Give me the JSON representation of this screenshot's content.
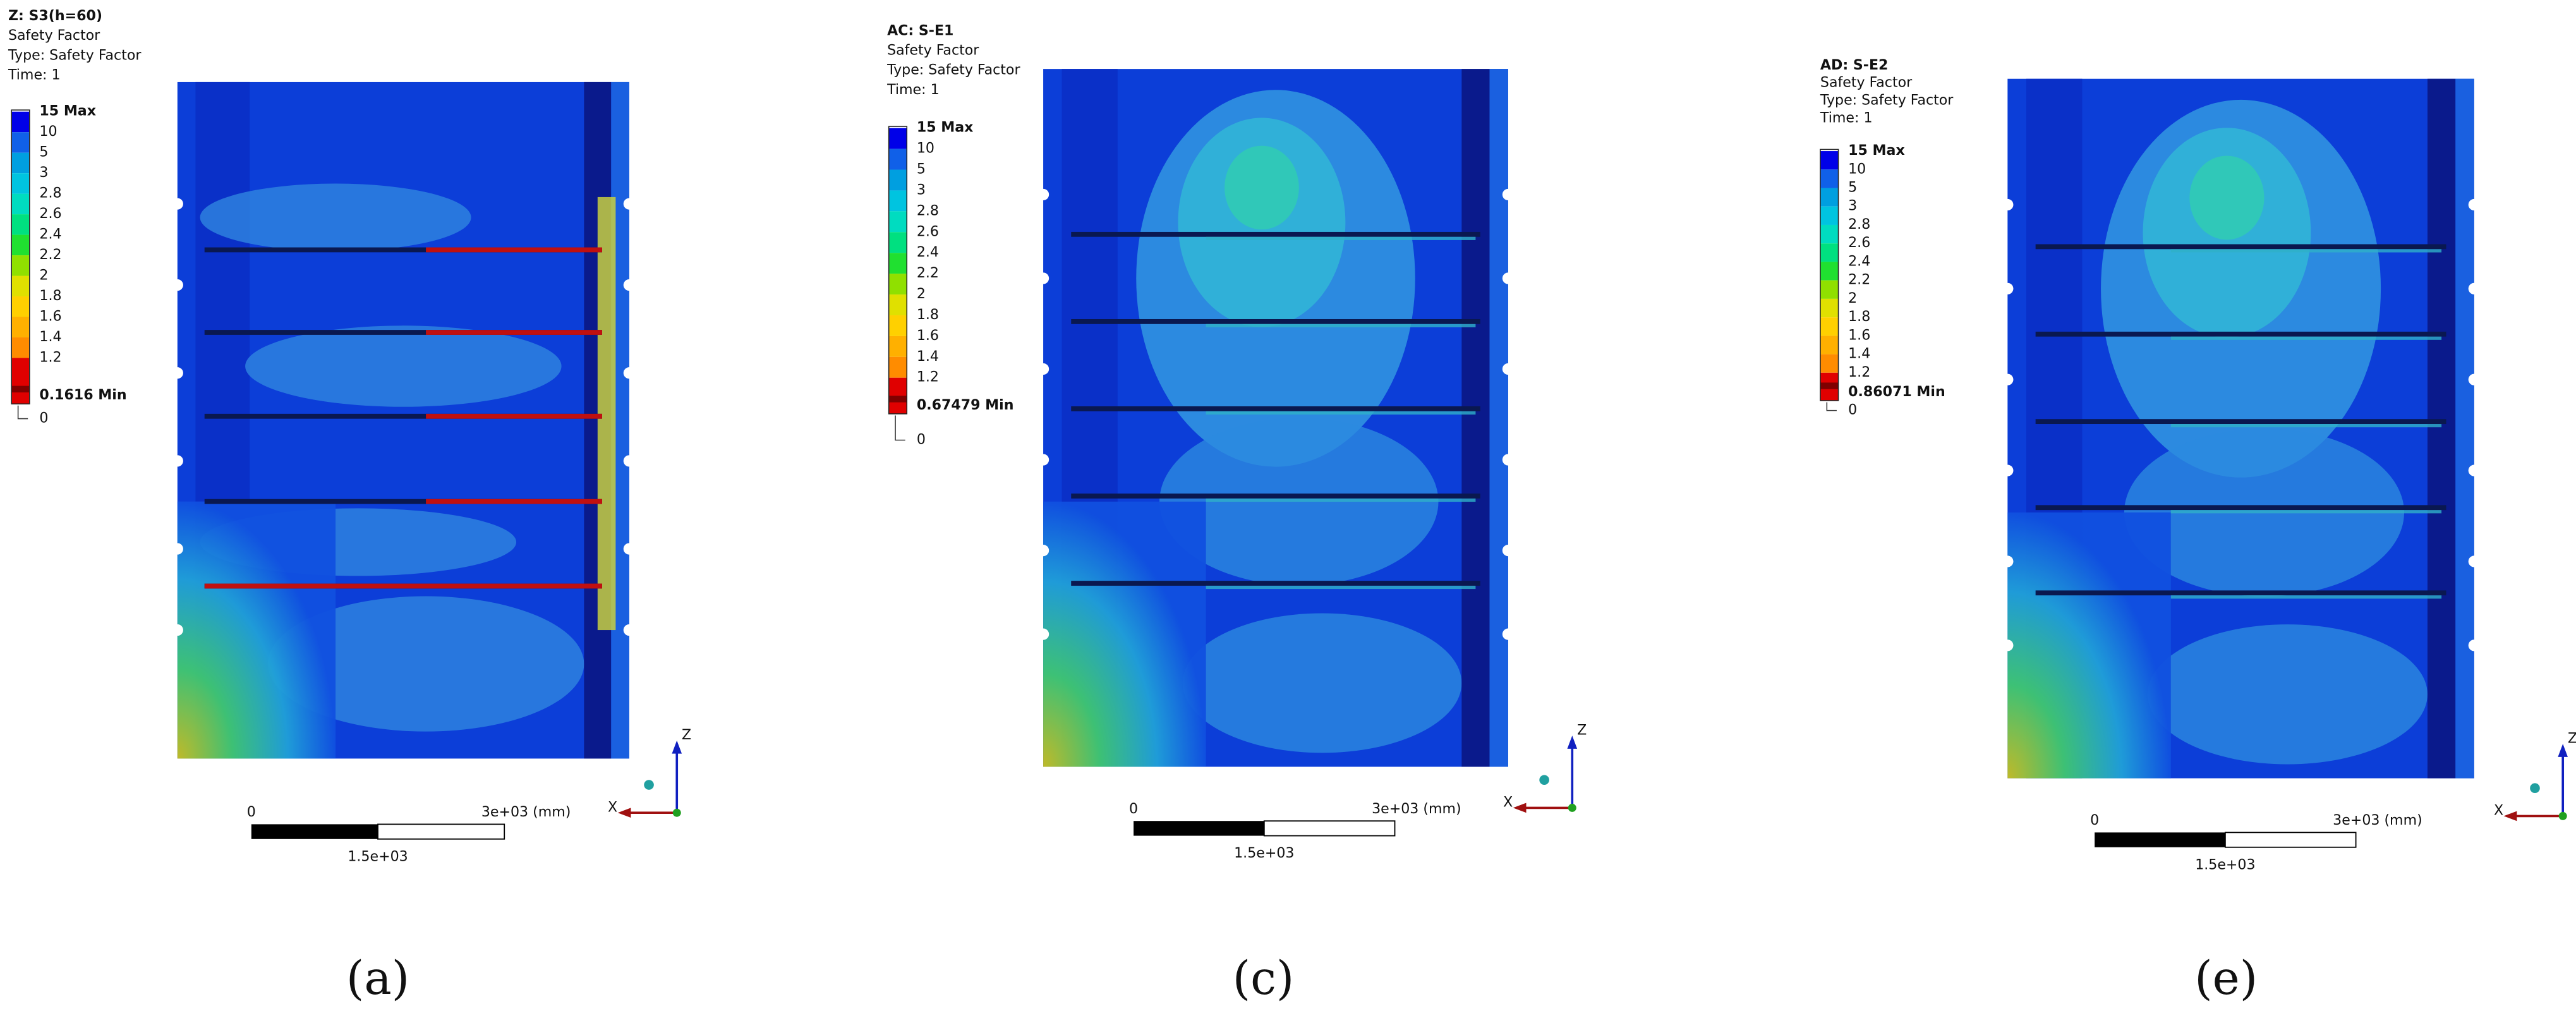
{
  "panels": [
    {
      "header": [
        "Z: S3(h=60)",
        "Safety Factor",
        "Type: Safety Factor",
        "Time: 1"
      ],
      "legend": [
        "15 Max",
        10,
        5,
        3,
        2.8,
        2.6,
        2.4,
        2.2,
        2,
        1.8,
        1.6,
        1.4,
        1.2,
        "0.1616 Min",
        0
      ],
      "scale_bar": {
        "start": 0,
        "end": "3e+03 (mm)",
        "mid": "1.5e+03"
      },
      "axes": {
        "z": "Z",
        "x": "X"
      },
      "caption": "(a)"
    },
    {
      "header": [
        "AC: S-E1",
        "Safety Factor",
        "Type: Safety Factor",
        "Time: 1"
      ],
      "legend": [
        "15 Max",
        10,
        5,
        3,
        2.8,
        2.6,
        2.4,
        2.2,
        2,
        1.8,
        1.6,
        1.4,
        1.2,
        "0.67479 Min",
        0
      ],
      "scale_bar": {
        "start": 0,
        "end": "3e+03 (mm)",
        "mid": "1.5e+03"
      },
      "axes": {
        "z": "Z",
        "x": "X"
      },
      "caption": "(c)"
    },
    {
      "header": [
        "AD: S-E2",
        "Safety Factor",
        "Type: Safety Factor",
        "Time: 1"
      ],
      "legend": [
        "15 Max",
        10,
        5,
        3,
        2.8,
        2.6,
        2.4,
        2.2,
        2,
        1.8,
        1.6,
        1.4,
        1.2,
        "0.86071 Min",
        0
      ],
      "scale_bar": {
        "start": 0,
        "end": "3e+03 (mm)",
        "mid": "1.5e+03"
      },
      "axes": {
        "z": "Z",
        "x": "X"
      },
      "caption": "(e)"
    }
  ]
}
